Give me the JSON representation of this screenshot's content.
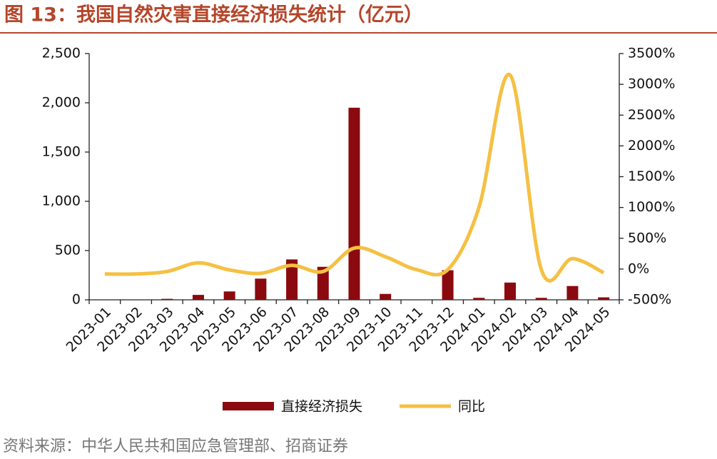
{
  "chart_data": {
    "type": "bar-line",
    "title": "图 13：我国自然灾害直接经济损失统计（亿元）",
    "source": "资料来源：中华人民共和国应急管理部、招商证券",
    "categories": [
      "2023-01",
      "2023-02",
      "2023-03",
      "2023-04",
      "2023-05",
      "2023-06",
      "2023-07",
      "2023-08",
      "2023-09",
      "2023-10",
      "2023-11",
      "2023-12",
      "2024-01",
      "2024-02",
      "2024-03",
      "2024-04",
      "2024-05"
    ],
    "series": [
      {
        "name": "直接经济损失",
        "color": "#8b0a0f",
        "type": "bar",
        "values": [
          0,
          0,
          10,
          50,
          85,
          215,
          410,
          335,
          1950,
          60,
          0,
          300,
          20,
          175,
          20,
          140,
          25
        ]
      },
      {
        "name": "同比",
        "color": "#f5c043",
        "type": "line",
        "axis": "y2",
        "values": [
          -80,
          -80,
          -40,
          100,
          -15,
          -70,
          60,
          -40,
          340,
          200,
          -10,
          -10,
          1000,
          3150,
          -10,
          170,
          -60
        ]
      }
    ],
    "ylim": [
      0,
      2500
    ],
    "yticks": [
      0,
      500,
      {
        "value": 1000,
        "label": "1,000"
      },
      {
        "value": 1500,
        "label": "1,500"
      },
      {
        "value": 2000,
        "label": "2,000"
      },
      {
        "value": 2500,
        "label": "2,500"
      }
    ],
    "y2lim": [
      -500,
      3500
    ],
    "y2ticks": [
      {
        "value": -500,
        "label": "-500%"
      },
      {
        "value": 0,
        "label": "0%"
      },
      {
        "value": 500,
        "label": "500%"
      },
      {
        "value": 1000,
        "label": "1000%"
      },
      {
        "value": 1500,
        "label": "1500%"
      },
      {
        "value": 2000,
        "label": "2000%"
      },
      {
        "value": 2500,
        "label": "2500%"
      },
      {
        "value": 3000,
        "label": "3000%"
      },
      {
        "value": 3500,
        "label": "3500%"
      }
    ],
    "legend": "bottom"
  }
}
